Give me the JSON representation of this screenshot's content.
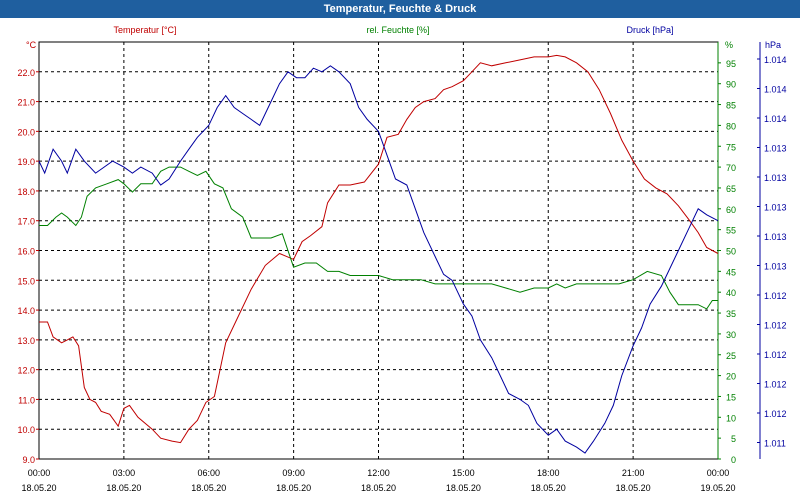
{
  "title": "Temperatur, Feuchte & Druck",
  "colors": {
    "title_bar": "#1f5f9f",
    "temperature": "#c00000",
    "humidity": "#008000",
    "pressure": "#0000a0"
  },
  "chart_data": {
    "type": "line",
    "title": "Temperatur, Feuchte & Druck",
    "grid": true,
    "x_ticks": [
      {
        "time": "00:00",
        "date": "18.05.20"
      },
      {
        "time": "03:00",
        "date": "18.05.20"
      },
      {
        "time": "06:00",
        "date": "18.05.20"
      },
      {
        "time": "09:00",
        "date": "18.05.20"
      },
      {
        "time": "12:00",
        "date": "18.05.20"
      },
      {
        "time": "15:00",
        "date": "18.05.20"
      },
      {
        "time": "18:00",
        "date": "18.05.20"
      },
      {
        "time": "21:00",
        "date": "18.05.20"
      },
      {
        "time": "00:00",
        "date": "19.05.20"
      }
    ],
    "axes": {
      "left": {
        "label": "Temperatur [°C]",
        "unit": "°C",
        "range": [
          9.0,
          23.0
        ],
        "ticks": [
          "22.0",
          "21.0",
          "20.0",
          "19.0",
          "18.0",
          "17.0",
          "16.0",
          "15.0",
          "14.0",
          "13.0",
          "12.0",
          "11.0",
          "10.0",
          "9.0"
        ]
      },
      "right1": {
        "label": "rel. Feuchte [%]",
        "unit": "%",
        "range": [
          0,
          100
        ],
        "ticks": [
          "95",
          "90",
          "85",
          "80",
          "75",
          "70",
          "65",
          "60",
          "55",
          "50",
          "45",
          "40",
          "35",
          "30",
          "25",
          "20",
          "15",
          "10",
          "5",
          "0"
        ]
      },
      "right2": {
        "label": "Druck [hPa]",
        "unit": "hPa",
        "range": [
          1011.0,
          1014.5
        ],
        "ticks": [
          "1.014",
          "1.014",
          "1.014",
          "1.013",
          "1.013",
          "1.013",
          "1.013",
          "1.013",
          "1.012",
          "1.012",
          "1.012",
          "1.012",
          "1.012",
          "1.011"
        ]
      }
    },
    "series": [
      {
        "name": "Temperatur [°C]",
        "axis": "left",
        "points": [
          [
            0,
            13.6
          ],
          [
            0.3,
            13.6
          ],
          [
            0.5,
            13.1
          ],
          [
            0.8,
            12.9
          ],
          [
            1.0,
            13.0
          ],
          [
            1.2,
            13.1
          ],
          [
            1.4,
            12.8
          ],
          [
            1.6,
            11.4
          ],
          [
            1.8,
            11.0
          ],
          [
            2.0,
            10.9
          ],
          [
            2.2,
            10.6
          ],
          [
            2.5,
            10.5
          ],
          [
            2.8,
            10.1
          ],
          [
            3.0,
            10.7
          ],
          [
            3.2,
            10.8
          ],
          [
            3.5,
            10.4
          ],
          [
            4.0,
            10.0
          ],
          [
            4.3,
            9.7
          ],
          [
            4.7,
            9.6
          ],
          [
            5.0,
            9.55
          ],
          [
            5.3,
            10.0
          ],
          [
            5.6,
            10.3
          ],
          [
            5.9,
            10.9
          ],
          [
            6.2,
            11.1
          ],
          [
            6.6,
            12.9
          ],
          [
            7.0,
            13.7
          ],
          [
            7.5,
            14.7
          ],
          [
            8.0,
            15.5
          ],
          [
            8.5,
            15.9
          ],
          [
            9.0,
            15.7
          ],
          [
            9.3,
            16.3
          ],
          [
            9.6,
            16.5
          ],
          [
            10.0,
            16.8
          ],
          [
            10.2,
            17.6
          ],
          [
            10.6,
            18.2
          ],
          [
            11.0,
            18.2
          ],
          [
            11.5,
            18.3
          ],
          [
            12.0,
            18.9
          ],
          [
            12.3,
            19.8
          ],
          [
            12.7,
            19.9
          ],
          [
            13.0,
            20.4
          ],
          [
            13.3,
            20.8
          ],
          [
            13.6,
            21.0
          ],
          [
            14.0,
            21.1
          ],
          [
            14.3,
            21.4
          ],
          [
            14.6,
            21.5
          ],
          [
            15.0,
            21.7
          ],
          [
            15.3,
            22.0
          ],
          [
            15.6,
            22.3
          ],
          [
            16.0,
            22.2
          ],
          [
            16.5,
            22.3
          ],
          [
            17.0,
            22.4
          ],
          [
            17.5,
            22.5
          ],
          [
            18.0,
            22.5
          ],
          [
            18.3,
            22.55
          ],
          [
            18.6,
            22.5
          ],
          [
            19.0,
            22.3
          ],
          [
            19.4,
            22.0
          ],
          [
            19.8,
            21.4
          ],
          [
            20.2,
            20.6
          ],
          [
            20.6,
            19.7
          ],
          [
            21.0,
            19.0
          ],
          [
            21.4,
            18.4
          ],
          [
            21.8,
            18.1
          ],
          [
            22.2,
            17.9
          ],
          [
            22.6,
            17.5
          ],
          [
            23.0,
            17.0
          ],
          [
            23.3,
            16.6
          ],
          [
            23.6,
            16.1
          ],
          [
            24.0,
            15.9
          ]
        ]
      },
      {
        "name": "rel. Feuchte [%]",
        "axis": "right1",
        "points": [
          [
            0,
            56
          ],
          [
            0.3,
            56
          ],
          [
            0.6,
            58
          ],
          [
            0.8,
            59
          ],
          [
            1.0,
            58
          ],
          [
            1.3,
            56
          ],
          [
            1.5,
            58
          ],
          [
            1.7,
            63
          ],
          [
            2.0,
            65
          ],
          [
            2.4,
            66
          ],
          [
            2.8,
            67
          ],
          [
            3.0,
            66
          ],
          [
            3.3,
            64
          ],
          [
            3.6,
            66
          ],
          [
            4.0,
            66
          ],
          [
            4.3,
            69
          ],
          [
            4.6,
            70
          ],
          [
            5.0,
            70
          ],
          [
            5.3,
            69
          ],
          [
            5.6,
            68
          ],
          [
            5.9,
            69
          ],
          [
            6.2,
            66
          ],
          [
            6.5,
            65
          ],
          [
            6.8,
            60
          ],
          [
            7.2,
            58
          ],
          [
            7.5,
            53
          ],
          [
            7.8,
            53
          ],
          [
            8.2,
            53
          ],
          [
            8.6,
            54
          ],
          [
            9.0,
            46
          ],
          [
            9.4,
            47
          ],
          [
            9.8,
            47
          ],
          [
            10.2,
            45
          ],
          [
            10.6,
            45
          ],
          [
            11.0,
            44
          ],
          [
            11.5,
            44
          ],
          [
            12.0,
            44
          ],
          [
            12.5,
            43
          ],
          [
            13.0,
            43
          ],
          [
            13.5,
            43
          ],
          [
            14.0,
            42
          ],
          [
            14.5,
            42
          ],
          [
            15.0,
            42
          ],
          [
            15.5,
            42
          ],
          [
            16.0,
            42
          ],
          [
            16.5,
            41
          ],
          [
            17.0,
            40
          ],
          [
            17.5,
            41
          ],
          [
            18.0,
            41
          ],
          [
            18.3,
            42
          ],
          [
            18.6,
            41
          ],
          [
            19.0,
            42
          ],
          [
            19.5,
            42
          ],
          [
            20.0,
            42
          ],
          [
            20.5,
            42
          ],
          [
            21.0,
            43
          ],
          [
            21.5,
            45
          ],
          [
            22.0,
            44
          ],
          [
            22.3,
            40
          ],
          [
            22.6,
            37
          ],
          [
            23.0,
            37
          ],
          [
            23.3,
            37
          ],
          [
            23.6,
            36
          ],
          [
            23.8,
            38
          ],
          [
            24.0,
            38
          ]
        ]
      },
      {
        "name": "Druck [hPa]",
        "axis": "right2",
        "points": [
          [
            0,
            1013.5
          ],
          [
            0.2,
            1013.4
          ],
          [
            0.5,
            1013.6
          ],
          [
            0.8,
            1013.5
          ],
          [
            1.0,
            1013.4
          ],
          [
            1.3,
            1013.6
          ],
          [
            1.6,
            1013.5
          ],
          [
            2.0,
            1013.4
          ],
          [
            2.3,
            1013.45
          ],
          [
            2.6,
            1013.5
          ],
          [
            3.0,
            1013.45
          ],
          [
            3.3,
            1013.4
          ],
          [
            3.6,
            1013.45
          ],
          [
            4.0,
            1013.4
          ],
          [
            4.3,
            1013.3
          ],
          [
            4.6,
            1013.35
          ],
          [
            5.0,
            1013.5
          ],
          [
            5.3,
            1013.6
          ],
          [
            5.6,
            1013.7
          ],
          [
            6.0,
            1013.8
          ],
          [
            6.3,
            1013.95
          ],
          [
            6.6,
            1014.05
          ],
          [
            6.9,
            1013.95
          ],
          [
            7.2,
            1013.9
          ],
          [
            7.5,
            1013.85
          ],
          [
            7.8,
            1013.8
          ],
          [
            8.2,
            1014.0
          ],
          [
            8.5,
            1014.15
          ],
          [
            8.8,
            1014.25
          ],
          [
            9.1,
            1014.2
          ],
          [
            9.4,
            1014.2
          ],
          [
            9.7,
            1014.28
          ],
          [
            10.0,
            1014.25
          ],
          [
            10.3,
            1014.3
          ],
          [
            10.6,
            1014.25
          ],
          [
            11.0,
            1014.15
          ],
          [
            11.3,
            1013.95
          ],
          [
            11.6,
            1013.85
          ],
          [
            12.0,
            1013.75
          ],
          [
            12.3,
            1013.55
          ],
          [
            12.6,
            1013.35
          ],
          [
            13.0,
            1013.3
          ],
          [
            13.3,
            1013.1
          ],
          [
            13.6,
            1012.9
          ],
          [
            14.0,
            1012.7
          ],
          [
            14.3,
            1012.55
          ],
          [
            14.6,
            1012.5
          ],
          [
            15.0,
            1012.3
          ],
          [
            15.3,
            1012.2
          ],
          [
            15.6,
            1012.0
          ],
          [
            16.0,
            1011.85
          ],
          [
            16.3,
            1011.7
          ],
          [
            16.6,
            1011.55
          ],
          [
            17.0,
            1011.5
          ],
          [
            17.3,
            1011.45
          ],
          [
            17.6,
            1011.3
          ],
          [
            18.0,
            1011.2
          ],
          [
            18.3,
            1011.25
          ],
          [
            18.6,
            1011.15
          ],
          [
            19.0,
            1011.1
          ],
          [
            19.3,
            1011.05
          ],
          [
            19.6,
            1011.15
          ],
          [
            20.0,
            1011.3
          ],
          [
            20.3,
            1011.45
          ],
          [
            20.6,
            1011.7
          ],
          [
            21.0,
            1011.95
          ],
          [
            21.3,
            1012.1
          ],
          [
            21.6,
            1012.3
          ],
          [
            22.0,
            1012.45
          ],
          [
            22.3,
            1012.6
          ],
          [
            22.6,
            1012.75
          ],
          [
            23.0,
            1012.95
          ],
          [
            23.3,
            1013.1
          ],
          [
            23.6,
            1013.05
          ],
          [
            24.0,
            1013.0
          ]
        ]
      }
    ]
  }
}
